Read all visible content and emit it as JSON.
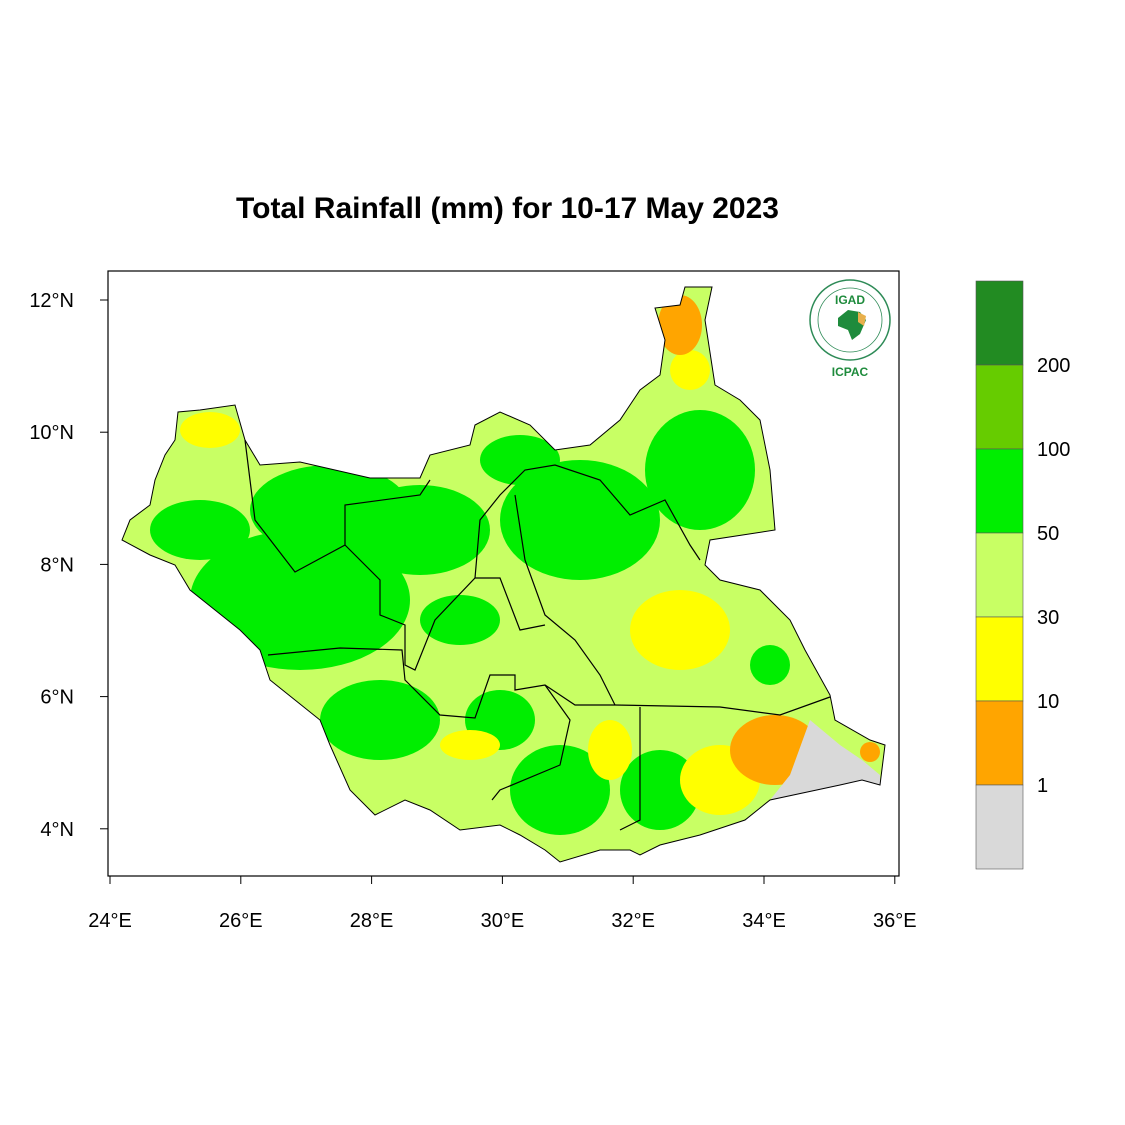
{
  "title": "Total Rainfall (mm) for 10-17 May 2023",
  "x_ticks": [
    "24°E",
    "26°E",
    "28°E",
    "30°E",
    "32°E",
    "34°E",
    "36°E"
  ],
  "y_ticks": [
    "12°N",
    "10°N",
    "8°N",
    "6°N",
    "4°N"
  ],
  "legend": {
    "labels": [
      "1",
      "10",
      "30",
      "50",
      "100",
      "200"
    ],
    "colors": [
      "#d9d9d9",
      "#ffa500",
      "#ffff00",
      "#c8ff64",
      "#00ee00",
      "#66cc00",
      "#228b22"
    ]
  },
  "logo": {
    "top_text": "IGAD",
    "bottom_text": "ICPAC"
  },
  "colors": {
    "outline": "#000000"
  }
}
